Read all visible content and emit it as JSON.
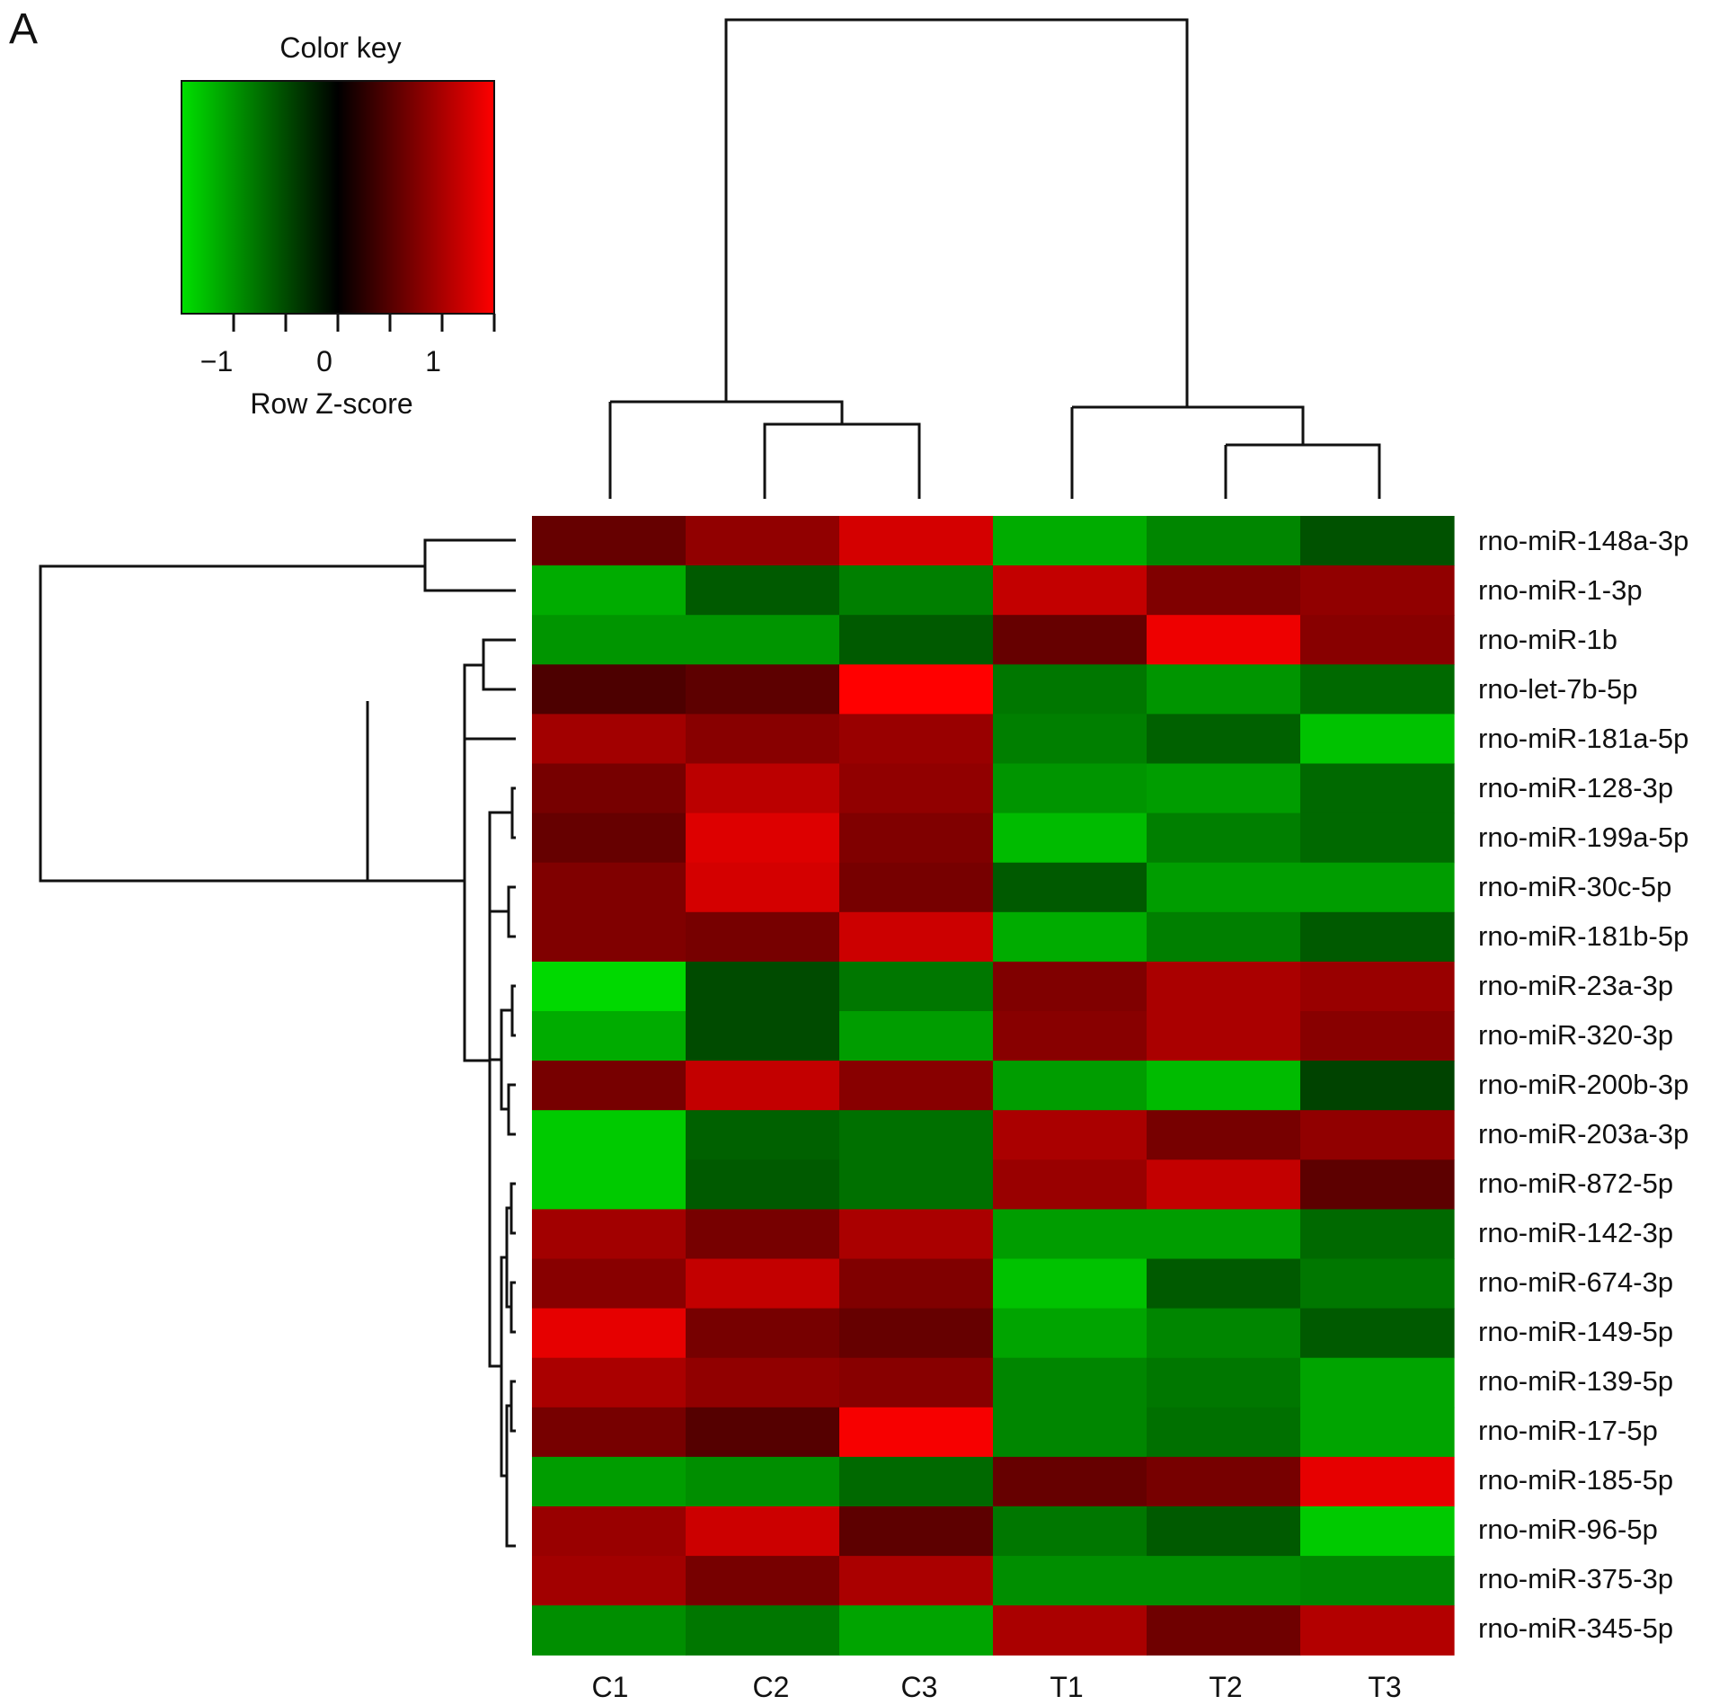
{
  "panel_label": "A",
  "color_key": {
    "title": "Color key",
    "xlabel": "Row Z-score",
    "ticks": [
      "−1",
      "0",
      "1"
    ],
    "tick_values": [
      -1,
      0,
      1
    ],
    "range": [
      -1.5,
      1.5
    ],
    "low_color": "#00e000",
    "mid_color": "#000000",
    "high_color": "#ff0000"
  },
  "chart_data": {
    "type": "heatmap",
    "title": "",
    "xlabel": "",
    "ylabel": "",
    "columns": [
      "C1",
      "C2",
      "C3",
      "T1",
      "T2",
      "T3"
    ],
    "rows": [
      "rno-miR-148a-3p",
      "rno-miR-1-3p",
      "rno-miR-1b",
      "rno-let-7b-5p",
      "rno-miR-181a-5p",
      "rno-miR-128-3p",
      "rno-miR-199a-5p",
      "rno-miR-30c-5p",
      "rno-miR-181b-5p",
      "rno-miR-23a-3p",
      "rno-miR-320-3p",
      "rno-miR-200b-3p",
      "rno-miR-203a-3p",
      "rno-miR-872-5p",
      "rno-miR-142-3p",
      "rno-miR-674-3p",
      "rno-miR-149-5p",
      "rno-miR-139-5p",
      "rno-miR-17-5p",
      "rno-miR-185-5p",
      "rno-miR-96-5p",
      "rno-miR-375-3p",
      "rno-miR-345-5p"
    ],
    "values": [
      [
        0.6,
        0.85,
        1.25,
        -1.15,
        -0.9,
        -0.55
      ],
      [
        -1.15,
        -0.6,
        -0.85,
        1.15,
        0.75,
        0.85
      ],
      [
        -1.0,
        -1.0,
        -0.6,
        0.6,
        1.4,
        0.8
      ],
      [
        0.45,
        0.55,
        1.55,
        -0.8,
        -1.0,
        -0.7
      ],
      [
        0.95,
        0.8,
        0.9,
        -0.85,
        -0.65,
        -1.3
      ],
      [
        0.7,
        1.1,
        0.85,
        -1.0,
        -1.05,
        -0.7
      ],
      [
        0.6,
        1.3,
        0.75,
        -1.25,
        -0.85,
        -0.7
      ],
      [
        0.75,
        1.25,
        0.7,
        -0.6,
        -1.05,
        -1.05
      ],
      [
        0.75,
        0.7,
        1.2,
        -1.15,
        -0.85,
        -0.6
      ],
      [
        -1.45,
        -0.5,
        -0.8,
        0.75,
        1.0,
        0.9
      ],
      [
        -1.15,
        -0.5,
        -1.05,
        0.8,
        1.0,
        0.8
      ],
      [
        0.7,
        1.15,
        0.8,
        -1.05,
        -1.25,
        -0.45
      ],
      [
        -1.35,
        -0.65,
        -0.75,
        1.0,
        0.7,
        0.85
      ],
      [
        -1.35,
        -0.6,
        -0.75,
        0.9,
        1.15,
        0.55
      ],
      [
        0.95,
        0.7,
        1.0,
        -1.05,
        -1.05,
        -0.7
      ],
      [
        0.8,
        1.15,
        0.75,
        -1.3,
        -0.6,
        -0.8
      ],
      [
        1.35,
        0.7,
        0.6,
        -1.1,
        -0.9,
        -0.6
      ],
      [
        1.0,
        0.85,
        0.8,
        -0.9,
        -0.8,
        -1.1
      ],
      [
        0.7,
        0.5,
        1.45,
        -0.9,
        -0.75,
        -1.1
      ],
      [
        -1.05,
        -0.95,
        -0.7,
        0.6,
        0.7,
        1.35
      ],
      [
        0.9,
        1.2,
        0.55,
        -0.8,
        -0.6,
        -1.35
      ],
      [
        0.95,
        0.7,
        1.0,
        -0.95,
        -0.95,
        -0.9
      ],
      [
        -0.95,
        -0.8,
        -1.1,
        1.0,
        0.65,
        1.05
      ]
    ],
    "zlim": [
      -1.5,
      1.5
    ],
    "scale": "row z-score",
    "colormap": [
      "#00e000",
      "#000000",
      "#ff0000"
    ],
    "column_dendrogram": "((C1,(C2,C3)),(T1,(T2,T3)))",
    "row_dendrogram": "clustered",
    "legend": "top-left"
  }
}
